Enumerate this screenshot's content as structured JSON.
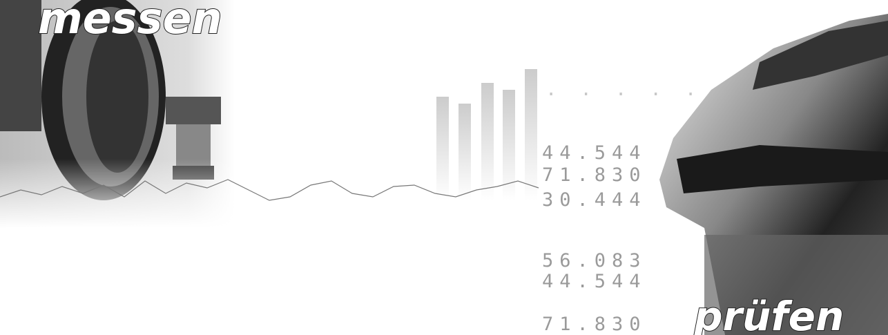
{
  "banner": {
    "left_word": "messen",
    "right_word": "prüfen",
    "readings": [
      "44.544",
      "71.830",
      "30.444",
      "56.083",
      "44.544",
      "71.830"
    ]
  }
}
